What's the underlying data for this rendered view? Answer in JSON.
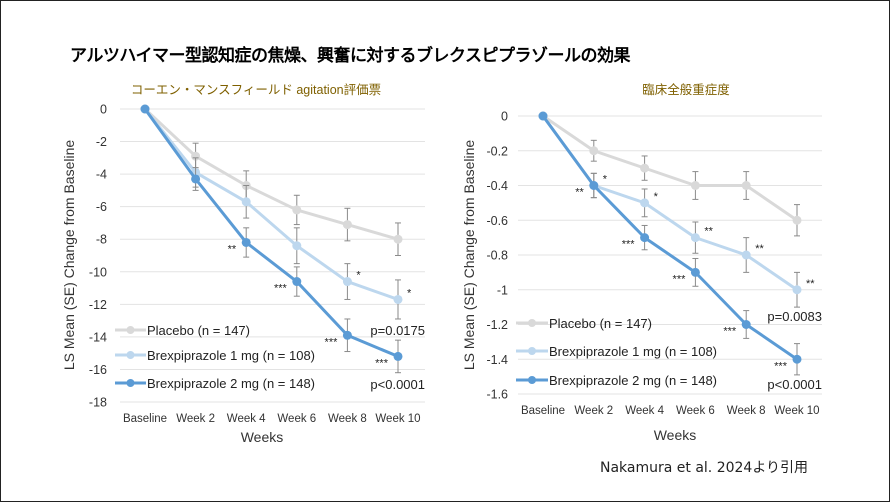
{
  "title": "アルツハイマー型認知症の焦燥、興奮に対するブレクスピプラゾールの効果",
  "citation": "Nakamura et al. 2024より引用",
  "colors": {
    "placebo": "#d9d9d9",
    "brex1": "#bdd7ee",
    "brex2": "#5b9bd5",
    "subtitle": "#7f6000",
    "grid": "#e3e3e3",
    "errorbar": "#8a8a8a"
  },
  "chart_data": [
    {
      "type": "line",
      "title": "コーエン・マンスフィールド agitation評価票",
      "xlabel": "Weeks",
      "ylabel": "LS Mean (SE) Change from Baseline",
      "categories": [
        "Baseline",
        "Week 2",
        "Week 4",
        "Week 6",
        "Week 8",
        "Week 10"
      ],
      "ylim": [
        -18,
        0
      ],
      "yticks": [
        0,
        -2,
        -4,
        -6,
        -8,
        -10,
        -12,
        -14,
        -16,
        -18
      ],
      "ytick_labels": [
        "0",
        "-2",
        "-4",
        "-6",
        "-8",
        "-10",
        "-12",
        "-14",
        "-16",
        "-18"
      ],
      "grid": true,
      "legend_placement": "bottom-left",
      "series": [
        {
          "name": "Placebo (n = 147)",
          "color": "#d9d9d9",
          "values": [
            0,
            -2.9,
            -4.7,
            -6.2,
            -7.1,
            -8.0
          ],
          "se": [
            0,
            0.8,
            0.9,
            0.9,
            1.0,
            1.0
          ]
        },
        {
          "name": "Brexpiprazole 1 mg (n = 108)",
          "color": "#bdd7ee",
          "values": [
            0,
            -3.9,
            -5.7,
            -8.4,
            -10.6,
            -11.7
          ],
          "se": [
            0,
            0.9,
            1.0,
            1.1,
            1.1,
            1.2
          ]
        },
        {
          "name": "Brexpiprazole 2 mg (n = 148)",
          "color": "#5b9bd5",
          "values": [
            0,
            -4.3,
            -8.2,
            -10.6,
            -13.9,
            -15.2
          ],
          "se": [
            0,
            0.7,
            0.9,
            0.9,
            1.0,
            1.0
          ]
        }
      ],
      "annotations": [
        {
          "series": 2,
          "x": 2,
          "text": "**",
          "side": "left"
        },
        {
          "series": 2,
          "x": 3,
          "text": "***",
          "side": "left"
        },
        {
          "series": 1,
          "x": 4,
          "text": "*",
          "side": "right"
        },
        {
          "series": 2,
          "x": 4,
          "text": "***",
          "side": "left"
        },
        {
          "series": 1,
          "x": 5,
          "text": "*",
          "side": "right"
        },
        {
          "series": 2,
          "x": 5,
          "text": "***",
          "side": "left"
        }
      ],
      "p_values": [
        "p=0.0175",
        "p<0.0001"
      ]
    },
    {
      "type": "line",
      "title": "臨床全般重症度",
      "xlabel": "Weeks",
      "ylabel": "LS Mean (SE) Change from Baseline",
      "categories": [
        "Baseline",
        "Week 2",
        "Week 4",
        "Week 6",
        "Week 8",
        "Week 10"
      ],
      "ylim": [
        -1.6,
        0
      ],
      "yticks": [
        0,
        -0.2,
        -0.4,
        -0.6,
        -0.8,
        -1,
        -1.2,
        -1.4,
        -1.6
      ],
      "ytick_labels": [
        "0",
        "-0.2",
        "-0.4",
        "-0.6",
        "-0.8",
        "-1",
        "-1.2",
        "-1.4",
        "-1.6"
      ],
      "grid": true,
      "legend_placement": "bottom-left",
      "series": [
        {
          "name": "Placebo (n = 147)",
          "color": "#d9d9d9",
          "values": [
            0,
            -0.2,
            -0.3,
            -0.4,
            -0.4,
            -0.6
          ],
          "se": [
            0,
            0.06,
            0.07,
            0.08,
            0.08,
            0.09
          ]
        },
        {
          "name": "Brexpiprazole 1 mg (n = 108)",
          "color": "#bdd7ee",
          "values": [
            0,
            -0.4,
            -0.5,
            -0.7,
            -0.8,
            -1.0
          ],
          "se": [
            0,
            0.07,
            0.08,
            0.09,
            0.1,
            0.1
          ]
        },
        {
          "name": "Brexpiprazole 2 mg (n = 148)",
          "color": "#5b9bd5",
          "values": [
            0,
            -0.4,
            -0.7,
            -0.9,
            -1.2,
            -1.4
          ],
          "se": [
            0,
            0.07,
            0.07,
            0.08,
            0.08,
            0.09
          ]
        }
      ],
      "annotations": [
        {
          "series": 2,
          "x": 1,
          "text": "**",
          "side": "left"
        },
        {
          "series": 1,
          "x": 1,
          "text": "*",
          "side": "right"
        },
        {
          "series": 1,
          "x": 2,
          "text": "*",
          "side": "right"
        },
        {
          "series": 2,
          "x": 2,
          "text": "***",
          "side": "left"
        },
        {
          "series": 1,
          "x": 3,
          "text": "**",
          "side": "right"
        },
        {
          "series": 2,
          "x": 3,
          "text": "***",
          "side": "left"
        },
        {
          "series": 1,
          "x": 4,
          "text": "**",
          "side": "right"
        },
        {
          "series": 2,
          "x": 4,
          "text": "***",
          "side": "left"
        },
        {
          "series": 1,
          "x": 5,
          "text": "**",
          "side": "right"
        },
        {
          "series": 2,
          "x": 5,
          "text": "***",
          "side": "left"
        }
      ],
      "p_values": [
        "p=0.0083",
        "p<0.0001"
      ]
    }
  ]
}
